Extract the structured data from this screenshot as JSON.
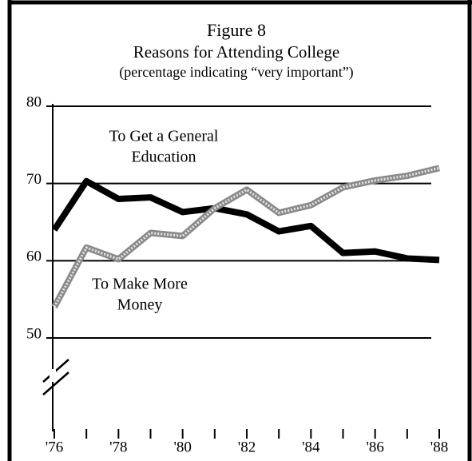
{
  "chart_data": {
    "type": "line",
    "title": "Figure 8",
    "subtitle": "Reasons for Attending College",
    "subtitle2": "(percentage indicating “very important”)",
    "x": [
      1976,
      1977,
      1978,
      1979,
      1980,
      1981,
      1982,
      1983,
      1984,
      1985,
      1986,
      1987,
      1988
    ],
    "series": [
      {
        "color": "#000000",
        "style": "solid",
        "values": [
          64,
          70.3,
          68,
          68.2,
          66.3,
          66.8,
          66,
          63.8,
          64.5,
          61,
          61.2,
          60.3,
          60.1
        ]
      },
      {
        "color": "#8a8a8a",
        "style": "hatched",
        "values": [
          54,
          61.7,
          60.2,
          63.6,
          63.2,
          66.8,
          69.2,
          66.2,
          67.2,
          69.5,
          70.4,
          71,
          72
        ]
      }
    ],
    "annotations": [
      {
        "lines": [
          "To Get a General",
          "Education"
        ],
        "series": 0
      },
      {
        "lines": [
          "To Make More",
          "Money"
        ],
        "series": 1
      }
    ],
    "xlim": [
      1976,
      1988
    ],
    "xticks": [
      {
        "value": 1976,
        "label": "'76"
      },
      {
        "value": 1978,
        "label": "'78"
      },
      {
        "value": 1980,
        "label": "'80"
      },
      {
        "value": 1982,
        "label": "'82"
      },
      {
        "value": 1984,
        "label": "'84"
      },
      {
        "value": 1986,
        "label": "'86"
      },
      {
        "value": 1988,
        "label": "'88"
      }
    ],
    "xminorticks": [
      1977,
      1979,
      1981,
      1983,
      1985,
      1987
    ],
    "ylim": [
      50,
      80
    ],
    "yticks": [
      50,
      60,
      70,
      80
    ],
    "grid": true,
    "axis_break": true
  }
}
